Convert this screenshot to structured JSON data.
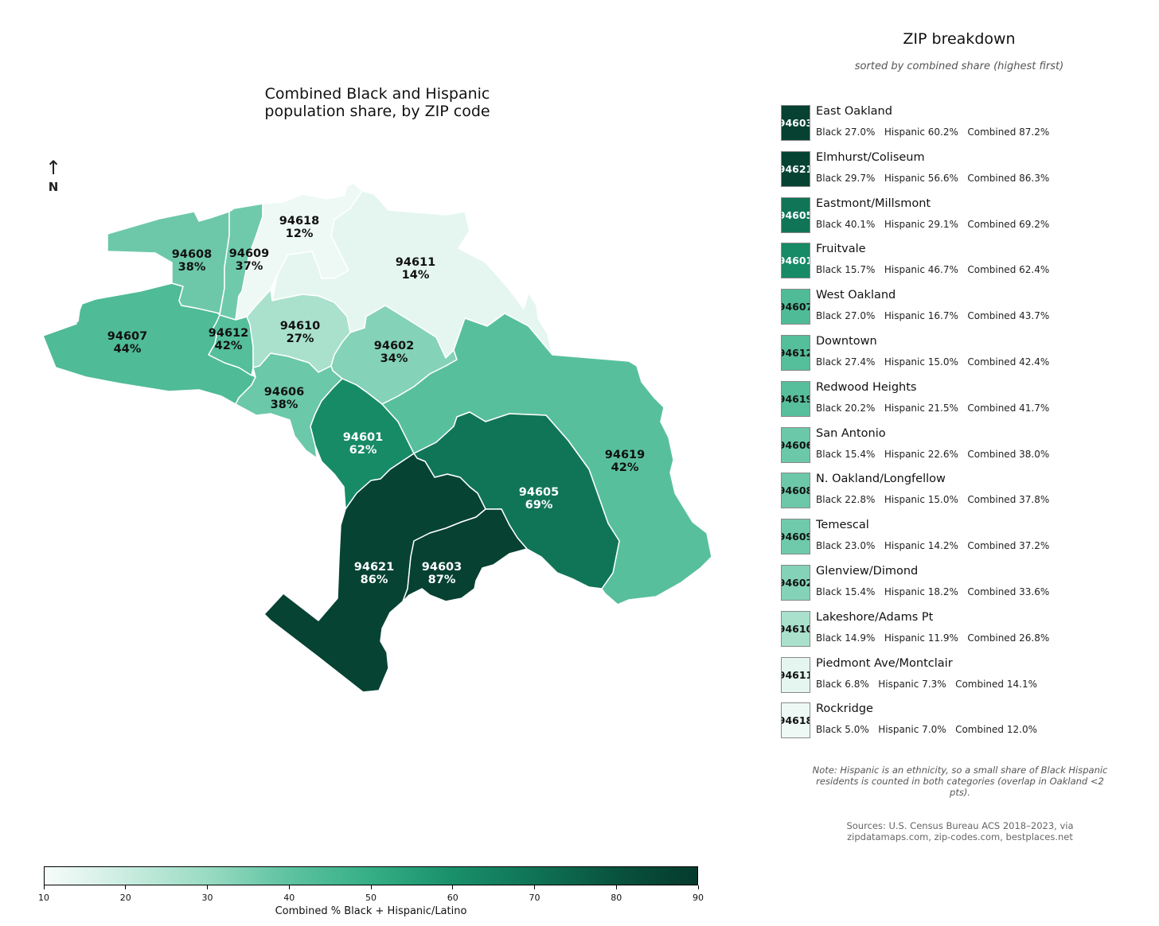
{
  "map": {
    "title_line1": "Combined Black and Hispanic",
    "title_line2": "population share, by ZIP code",
    "north_label": "N",
    "arrow_glyph": "↑",
    "regions": [
      {
        "zip": "94608",
        "pct": "38%",
        "combined": 37.8
      },
      {
        "zip": "94609",
        "pct": "37%",
        "combined": 37.2
      },
      {
        "zip": "94618",
        "pct": "12%",
        "combined": 12.0
      },
      {
        "zip": "94611",
        "pct": "14%",
        "combined": 14.1
      },
      {
        "zip": "94607",
        "pct": "44%",
        "combined": 43.7
      },
      {
        "zip": "94612",
        "pct": "42%",
        "combined": 42.4
      },
      {
        "zip": "94610",
        "pct": "27%",
        "combined": 26.8
      },
      {
        "zip": "94602",
        "pct": "34%",
        "combined": 33.6
      },
      {
        "zip": "94606",
        "pct": "38%",
        "combined": 38.0
      },
      {
        "zip": "94601",
        "pct": "62%",
        "combined": 62.4
      },
      {
        "zip": "94619",
        "pct": "42%",
        "combined": 41.7
      },
      {
        "zip": "94605",
        "pct": "69%",
        "combined": 69.2
      },
      {
        "zip": "94621",
        "pct": "86%",
        "combined": 86.3
      },
      {
        "zip": "94603",
        "pct": "87%",
        "combined": 87.2
      }
    ]
  },
  "colorbar": {
    "label": "Combined % Black + Hispanic/Latino",
    "min": 10,
    "max": 90,
    "ticks": [
      "10",
      "20",
      "30",
      "40",
      "50",
      "60",
      "70",
      "80",
      "90"
    ]
  },
  "panel": {
    "title": "ZIP breakdown",
    "subtitle": "sorted by combined share (highest first)",
    "rows": [
      {
        "zip": "94603",
        "name": "East Oakland",
        "black": "27.0%",
        "hispanic": "60.2%",
        "combined": "87.2%",
        "value": 87.2
      },
      {
        "zip": "94621",
        "name": "Elmhurst/Coliseum",
        "black": "29.7%",
        "hispanic": "56.6%",
        "combined": "86.3%",
        "value": 86.3
      },
      {
        "zip": "94605",
        "name": "Eastmont/Millsmont",
        "black": "40.1%",
        "hispanic": "29.1%",
        "combined": "69.2%",
        "value": 69.2
      },
      {
        "zip": "94601",
        "name": "Fruitvale",
        "black": "15.7%",
        "hispanic": "46.7%",
        "combined": "62.4%",
        "value": 62.4
      },
      {
        "zip": "94607",
        "name": "West Oakland",
        "black": "27.0%",
        "hispanic": "16.7%",
        "combined": "43.7%",
        "value": 43.7
      },
      {
        "zip": "94612",
        "name": "Downtown",
        "black": "27.4%",
        "hispanic": "15.0%",
        "combined": "42.4%",
        "value": 42.4
      },
      {
        "zip": "94619",
        "name": "Redwood Heights",
        "black": "20.2%",
        "hispanic": "21.5%",
        "combined": "41.7%",
        "value": 41.7
      },
      {
        "zip": "94606",
        "name": "San Antonio",
        "black": "15.4%",
        "hispanic": "22.6%",
        "combined": "38.0%",
        "value": 38.0
      },
      {
        "zip": "94608",
        "name": "N. Oakland/Longfellow",
        "black": "22.8%",
        "hispanic": "15.0%",
        "combined": "37.8%",
        "value": 37.8
      },
      {
        "zip": "94609",
        "name": "Temescal",
        "black": "23.0%",
        "hispanic": "14.2%",
        "combined": "37.2%",
        "value": 37.2
      },
      {
        "zip": "94602",
        "name": "Glenview/Dimond",
        "black": "15.4%",
        "hispanic": "18.2%",
        "combined": "33.6%",
        "value": 33.6
      },
      {
        "zip": "94610",
        "name": "Lakeshore/Adams Pt",
        "black": "14.9%",
        "hispanic": "11.9%",
        "combined": "26.8%",
        "value": 26.8
      },
      {
        "zip": "94611",
        "name": "Piedmont Ave/Montclair",
        "black": "6.8%",
        "hispanic": "7.3%",
        "combined": "14.1%",
        "value": 14.1
      },
      {
        "zip": "94618",
        "name": "Rockridge",
        "black": "5.0%",
        "hispanic": "7.0%",
        "combined": "12.0%",
        "value": 12.0
      }
    ],
    "stat_labels": {
      "black": "Black",
      "hispanic": "Hispanic",
      "combined": "Combined"
    }
  },
  "note": "Note: Hispanic is an ethnicity, so a small share of Black Hispanic residents is counted in both categories (overlap in Oakland <2 pts).",
  "sources_line1": "Sources: U.S. Census Bureau ACS 2018–2023, via",
  "sources_line2": "zipdatamaps.com, zip-codes.com, bestplaces.net"
}
